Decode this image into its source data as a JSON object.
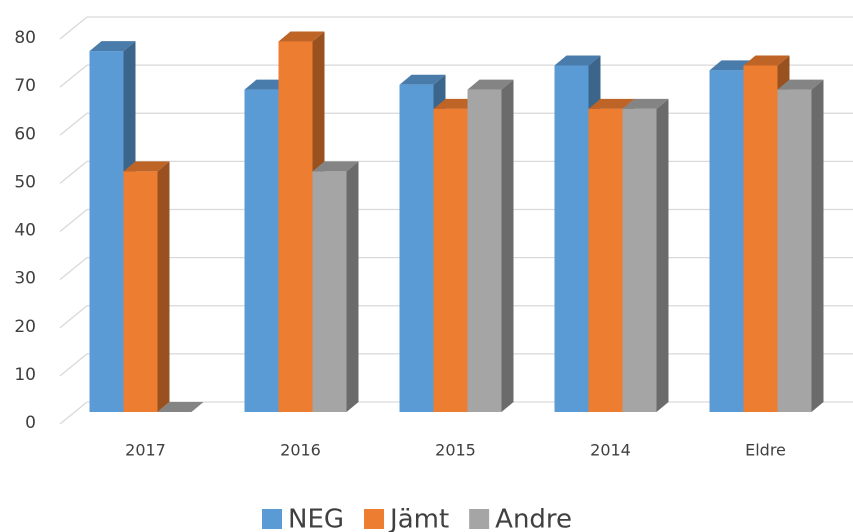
{
  "chart_data": {
    "type": "bar3d",
    "categories": [
      "2017",
      "2016",
      "2015",
      "2014",
      "Eldre"
    ],
    "series": [
      {
        "name": "NEG",
        "color": "#5b9bd5",
        "values": [
          75,
          67,
          68,
          72,
          71
        ]
      },
      {
        "name": "Jämt",
        "color": "#ed7d31",
        "values": [
          50,
          77,
          63,
          63,
          72
        ]
      },
      {
        "name": "Andre",
        "color": "#a5a5a5",
        "values": [
          0,
          50,
          67,
          63,
          67
        ]
      }
    ],
    "ylim": [
      0,
      80
    ],
    "yticks": [
      0,
      10,
      20,
      30,
      40,
      50,
      60,
      70,
      80
    ],
    "grid": true,
    "legend": "bottom"
  }
}
